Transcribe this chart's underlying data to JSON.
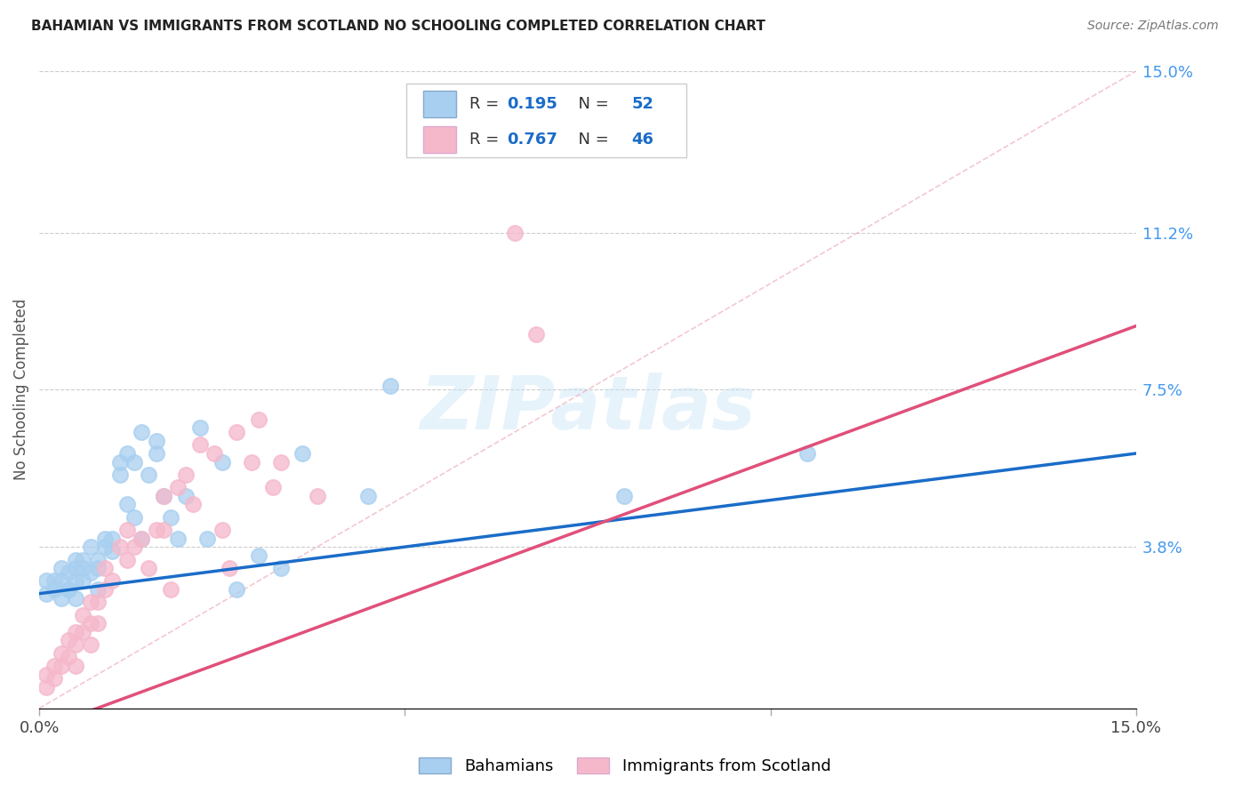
{
  "title": "BAHAMIAN VS IMMIGRANTS FROM SCOTLAND NO SCHOOLING COMPLETED CORRELATION CHART",
  "source": "Source: ZipAtlas.com",
  "ylabel": "No Schooling Completed",
  "legend_label1": "Bahamians",
  "legend_label2": "Immigrants from Scotland",
  "r1": 0.195,
  "n1": 52,
  "r2": 0.767,
  "n2": 46,
  "color1": "#a8cff0",
  "color2": "#f5b8cb",
  "line_color1": "#1a6cc8",
  "line_color2": "#e0507a",
  "xmin": 0.0,
  "xmax": 0.15,
  "ymin": 0.0,
  "ymax": 0.15,
  "watermark": "ZIPatlas",
  "background_color": "#ffffff",
  "grid_color": "#cccccc",
  "blue_x": [
    0.001,
    0.001,
    0.002,
    0.002,
    0.003,
    0.003,
    0.003,
    0.004,
    0.004,
    0.004,
    0.005,
    0.005,
    0.005,
    0.005,
    0.006,
    0.006,
    0.006,
    0.007,
    0.007,
    0.008,
    0.008,
    0.008,
    0.009,
    0.009,
    0.01,
    0.01,
    0.011,
    0.011,
    0.012,
    0.012,
    0.013,
    0.013,
    0.014,
    0.014,
    0.015,
    0.016,
    0.016,
    0.017,
    0.018,
    0.019,
    0.02,
    0.022,
    0.023,
    0.025,
    0.027,
    0.03,
    0.033,
    0.036,
    0.045,
    0.048,
    0.08,
    0.105
  ],
  "blue_y": [
    0.027,
    0.03,
    0.03,
    0.028,
    0.033,
    0.03,
    0.026,
    0.028,
    0.032,
    0.028,
    0.035,
    0.03,
    0.033,
    0.026,
    0.033,
    0.03,
    0.035,
    0.032,
    0.038,
    0.033,
    0.028,
    0.035,
    0.04,
    0.038,
    0.04,
    0.037,
    0.058,
    0.055,
    0.06,
    0.048,
    0.058,
    0.045,
    0.04,
    0.065,
    0.055,
    0.063,
    0.06,
    0.05,
    0.045,
    0.04,
    0.05,
    0.066,
    0.04,
    0.058,
    0.028,
    0.036,
    0.033,
    0.06,
    0.05,
    0.076,
    0.05,
    0.06
  ],
  "pink_x": [
    0.001,
    0.001,
    0.002,
    0.002,
    0.003,
    0.003,
    0.004,
    0.004,
    0.005,
    0.005,
    0.005,
    0.006,
    0.006,
    0.007,
    0.007,
    0.007,
    0.008,
    0.008,
    0.009,
    0.009,
    0.01,
    0.011,
    0.012,
    0.012,
    0.013,
    0.014,
    0.015,
    0.016,
    0.017,
    0.017,
    0.018,
    0.019,
    0.02,
    0.021,
    0.022,
    0.024,
    0.025,
    0.026,
    0.027,
    0.029,
    0.03,
    0.032,
    0.033,
    0.038,
    0.065,
    0.068
  ],
  "pink_y": [
    0.005,
    0.008,
    0.007,
    0.01,
    0.01,
    0.013,
    0.012,
    0.016,
    0.015,
    0.018,
    0.01,
    0.018,
    0.022,
    0.02,
    0.025,
    0.015,
    0.025,
    0.02,
    0.028,
    0.033,
    0.03,
    0.038,
    0.035,
    0.042,
    0.038,
    0.04,
    0.033,
    0.042,
    0.042,
    0.05,
    0.028,
    0.052,
    0.055,
    0.048,
    0.062,
    0.06,
    0.042,
    0.033,
    0.065,
    0.058,
    0.068,
    0.052,
    0.058,
    0.05,
    0.112,
    0.088
  ]
}
